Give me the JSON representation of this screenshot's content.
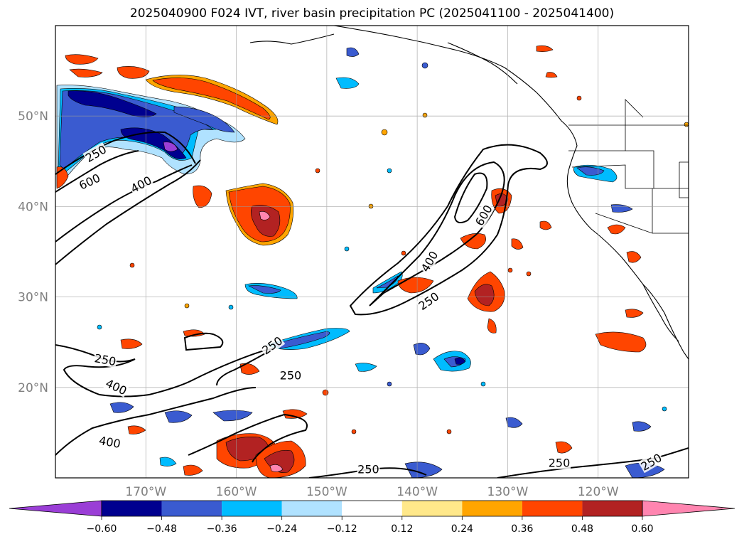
{
  "title": "2025040900 F024 IVT, river basin precipitation PC (2025041100 - 2025041400)",
  "map": {
    "lon_range": [
      -180,
      -110
    ],
    "lat_range": [
      10,
      60
    ],
    "lat_ticks": [
      {
        "value": 50,
        "label": "50°N"
      },
      {
        "value": 40,
        "label": "40°N"
      },
      {
        "value": 30,
        "label": "30°N"
      },
      {
        "value": 20,
        "label": "20°N"
      }
    ],
    "lon_ticks": [
      {
        "value": -170,
        "label": "170°W"
      },
      {
        "value": -160,
        "label": "160°W"
      },
      {
        "value": -150,
        "label": "150°W"
      },
      {
        "value": -140,
        "label": "140°W"
      },
      {
        "value": -130,
        "label": "130°W"
      },
      {
        "value": -120,
        "label": "120°W"
      }
    ],
    "grid": true
  },
  "colorbar": {
    "colors": [
      "#9a3ed6",
      "#00008f",
      "#3a5bd0",
      "#00bcff",
      "#b0e2ff",
      "#ffffff",
      "#ffe88a",
      "#ffa500",
      "#ff4500",
      "#b22222",
      "#ff85b0"
    ],
    "tick_labels": [
      "−0.60",
      "−0.48",
      "−0.36",
      "−0.24",
      "−0.12",
      "0.12",
      "0.24",
      "0.36",
      "0.48",
      "0.60"
    ],
    "extend": "both"
  },
  "ivt_contours": {
    "levels": [
      250,
      400,
      600
    ],
    "labels": [
      {
        "text": "250",
        "lon": -175.5,
        "lat": 45.8,
        "rot": -30
      },
      {
        "text": "600",
        "lon": -176.2,
        "lat": 42.7,
        "rot": -25
      },
      {
        "text": "400",
        "lon": -170.5,
        "lat": 42.4,
        "rot": -28
      },
      {
        "text": "600",
        "lon": -132.6,
        "lat": 39.0,
        "rot": -60
      },
      {
        "text": "400",
        "lon": -138.6,
        "lat": 33.9,
        "rot": -60
      },
      {
        "text": "250",
        "lon": -138.7,
        "lat": 29.5,
        "rot": -35
      },
      {
        "text": "250",
        "lon": -174.5,
        "lat": 23.0,
        "rot": 10
      },
      {
        "text": "400",
        "lon": -173.3,
        "lat": 20.0,
        "rot": 25
      },
      {
        "text": "250",
        "lon": -156.0,
        "lat": 24.6,
        "rot": -35
      },
      {
        "text": "250",
        "lon": -154.0,
        "lat": 21.3,
        "rot": 0
      },
      {
        "text": "400",
        "lon": -174.0,
        "lat": 13.9,
        "rot": 10
      },
      {
        "text": "250",
        "lon": -145.4,
        "lat": 10.9,
        "rot": 0
      },
      {
        "text": "250",
        "lon": -124.3,
        "lat": 11.6,
        "rot": 0
      },
      {
        "text": "250",
        "lon": -114.1,
        "lat": 11.7,
        "rot": -30
      }
    ]
  }
}
